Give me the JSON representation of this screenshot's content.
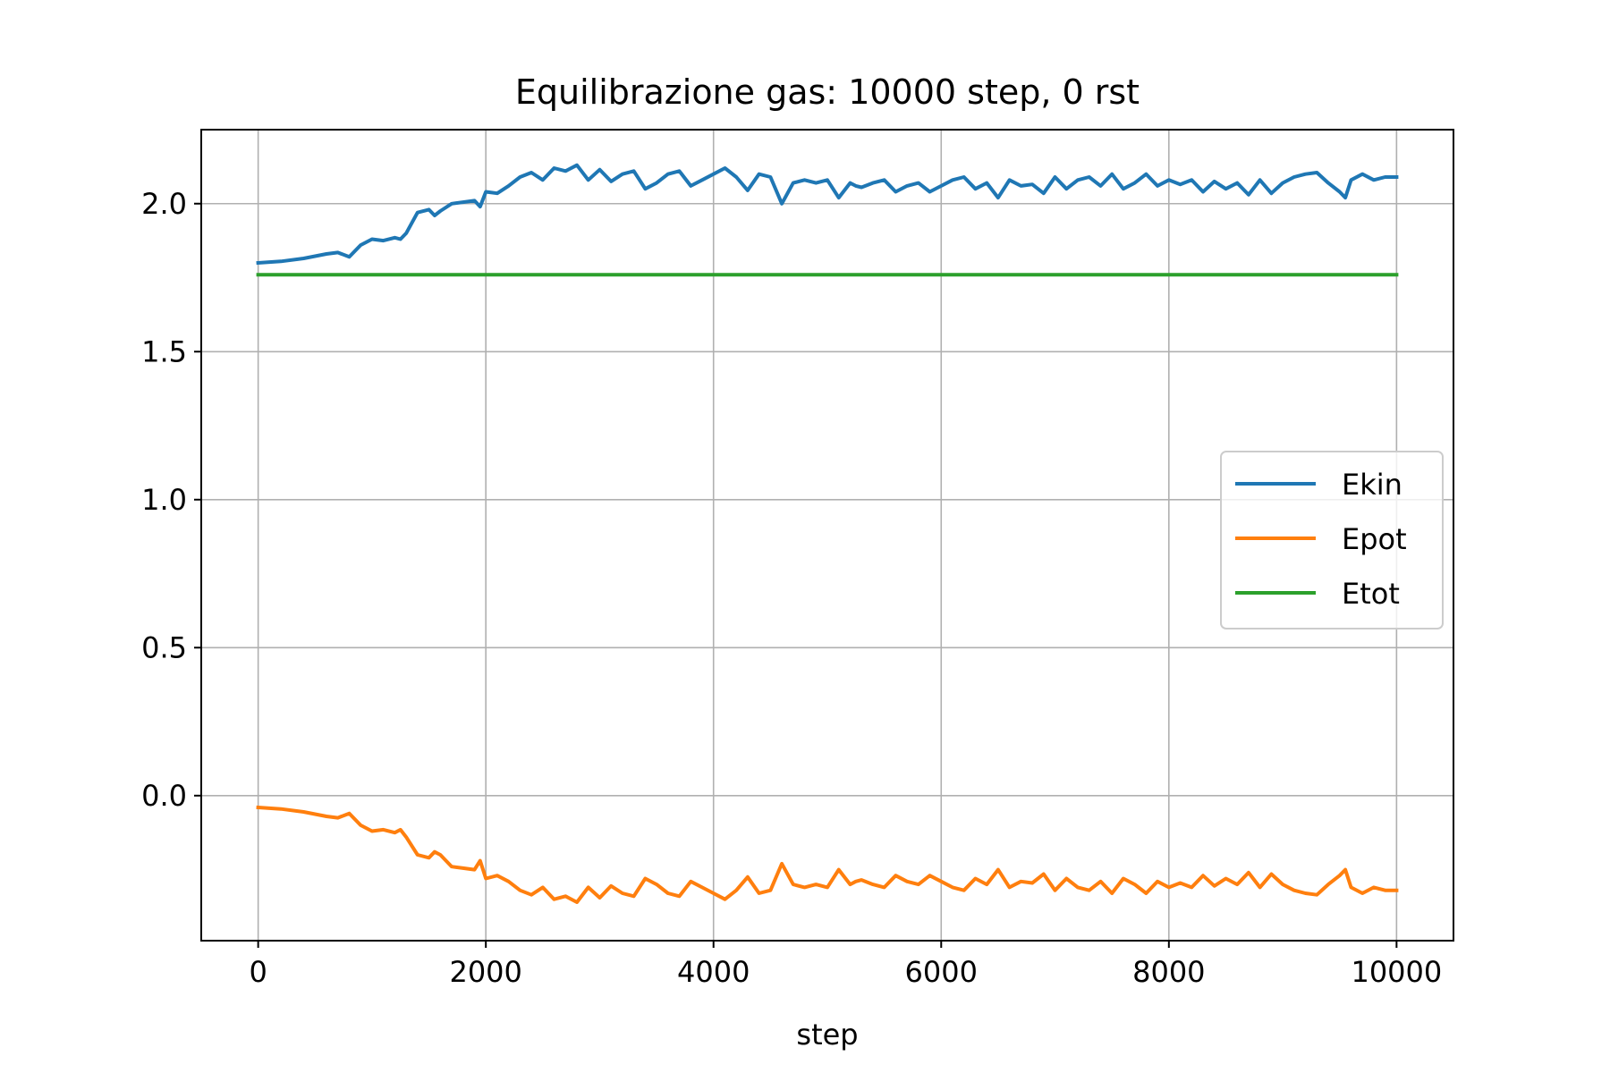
{
  "chart_data": {
    "type": "line",
    "title": "Equilibrazione gas: 10000 step, 0 rst",
    "xlabel": "step",
    "ylabel": "",
    "xlim": [
      -500,
      10500
    ],
    "ylim": [
      -0.49,
      2.25
    ],
    "xticks": [
      0,
      2000,
      4000,
      6000,
      8000,
      10000
    ],
    "xtick_labels": [
      "0",
      "2000",
      "4000",
      "6000",
      "8000",
      "10000"
    ],
    "yticks": [
      0.0,
      0.5,
      1.0,
      1.5,
      2.0
    ],
    "ytick_labels": [
      "0.0",
      "0.5",
      "1.0",
      "1.5",
      "2.0"
    ],
    "grid": true,
    "legend_position": "center-right",
    "series": [
      {
        "name": "Ekin",
        "color": "#1f77b4",
        "x": [
          0,
          200,
          400,
          600,
          700,
          800,
          900,
          1000,
          1100,
          1200,
          1250,
          1300,
          1400,
          1500,
          1550,
          1600,
          1700,
          1800,
          1900,
          1950,
          2000,
          2100,
          2200,
          2300,
          2400,
          2500,
          2600,
          2700,
          2800,
          2900,
          3000,
          3100,
          3200,
          3300,
          3400,
          3500,
          3600,
          3700,
          3800,
          3900,
          4000,
          4100,
          4200,
          4300,
          4400,
          4500,
          4600,
          4700,
          4750,
          4800,
          4900,
          5000,
          5100,
          5200,
          5250,
          5300,
          5400,
          5500,
          5600,
          5700,
          5800,
          5900,
          6000,
          6100,
          6200,
          6300,
          6400,
          6500,
          6600,
          6700,
          6800,
          6900,
          7000,
          7100,
          7200,
          7300,
          7400,
          7500,
          7600,
          7700,
          7800,
          7900,
          8000,
          8100,
          8200,
          8300,
          8400,
          8500,
          8600,
          8700,
          8800,
          8900,
          9000,
          9100,
          9200,
          9300,
          9400,
          9500,
          9550,
          9600,
          9700,
          9800,
          9900,
          10000
        ],
        "values": [
          1.8,
          1.805,
          1.815,
          1.83,
          1.835,
          1.82,
          1.86,
          1.88,
          1.875,
          1.885,
          1.88,
          1.9,
          1.97,
          1.98,
          1.96,
          1.975,
          2.0,
          2.005,
          2.01,
          1.99,
          2.04,
          2.035,
          2.06,
          2.09,
          2.105,
          2.08,
          2.12,
          2.11,
          2.13,
          2.08,
          2.115,
          2.075,
          2.1,
          2.11,
          2.05,
          2.07,
          2.1,
          2.11,
          2.06,
          2.08,
          2.1,
          2.12,
          2.09,
          2.045,
          2.1,
          2.09,
          2.0,
          2.07,
          2.075,
          2.08,
          2.07,
          2.08,
          2.02,
          2.07,
          2.06,
          2.055,
          2.07,
          2.08,
          2.04,
          2.06,
          2.07,
          2.04,
          2.06,
          2.08,
          2.09,
          2.05,
          2.07,
          2.02,
          2.08,
          2.06,
          2.065,
          2.035,
          2.09,
          2.05,
          2.08,
          2.09,
          2.06,
          2.1,
          2.05,
          2.07,
          2.1,
          2.06,
          2.08,
          2.065,
          2.08,
          2.04,
          2.075,
          2.05,
          2.07,
          2.03,
          2.08,
          2.035,
          2.07,
          2.09,
          2.1,
          2.105,
          2.07,
          2.04,
          2.02,
          2.08,
          2.1,
          2.08,
          2.09,
          2.09
        ]
      },
      {
        "name": "Epot",
        "color": "#ff7f0e",
        "x": [
          0,
          200,
          400,
          600,
          700,
          800,
          900,
          1000,
          1100,
          1200,
          1250,
          1300,
          1400,
          1500,
          1550,
          1600,
          1700,
          1800,
          1900,
          1950,
          2000,
          2100,
          2200,
          2300,
          2400,
          2500,
          2600,
          2700,
          2800,
          2900,
          3000,
          3100,
          3200,
          3300,
          3400,
          3500,
          3600,
          3700,
          3800,
          3900,
          4000,
          4100,
          4200,
          4300,
          4400,
          4500,
          4600,
          4700,
          4750,
          4800,
          4900,
          5000,
          5100,
          5200,
          5250,
          5300,
          5400,
          5500,
          5600,
          5700,
          5800,
          5900,
          6000,
          6100,
          6200,
          6300,
          6400,
          6500,
          6600,
          6700,
          6800,
          6900,
          7000,
          7100,
          7200,
          7300,
          7400,
          7500,
          7600,
          7700,
          7800,
          7900,
          8000,
          8100,
          8200,
          8300,
          8400,
          8500,
          8600,
          8700,
          8800,
          8900,
          9000,
          9100,
          9200,
          9300,
          9400,
          9500,
          9550,
          9600,
          9700,
          9800,
          9900,
          10000
        ],
        "values": [
          -0.04,
          -0.045,
          -0.055,
          -0.07,
          -0.075,
          -0.06,
          -0.1,
          -0.12,
          -0.115,
          -0.125,
          -0.115,
          -0.14,
          -0.2,
          -0.21,
          -0.19,
          -0.2,
          -0.24,
          -0.245,
          -0.25,
          -0.22,
          -0.28,
          -0.27,
          -0.29,
          -0.32,
          -0.335,
          -0.31,
          -0.35,
          -0.34,
          -0.36,
          -0.31,
          -0.345,
          -0.305,
          -0.33,
          -0.34,
          -0.28,
          -0.3,
          -0.33,
          -0.34,
          -0.29,
          -0.31,
          -0.33,
          -0.35,
          -0.32,
          -0.275,
          -0.33,
          -0.32,
          -0.23,
          -0.3,
          -0.305,
          -0.31,
          -0.3,
          -0.31,
          -0.25,
          -0.3,
          -0.29,
          -0.285,
          -0.3,
          -0.31,
          -0.27,
          -0.29,
          -0.3,
          -0.27,
          -0.29,
          -0.31,
          -0.32,
          -0.28,
          -0.3,
          -0.25,
          -0.31,
          -0.29,
          -0.295,
          -0.265,
          -0.32,
          -0.28,
          -0.31,
          -0.32,
          -0.29,
          -0.33,
          -0.28,
          -0.3,
          -0.33,
          -0.29,
          -0.31,
          -0.295,
          -0.31,
          -0.27,
          -0.305,
          -0.28,
          -0.3,
          -0.26,
          -0.31,
          -0.265,
          -0.3,
          -0.32,
          -0.33,
          -0.335,
          -0.3,
          -0.27,
          -0.25,
          -0.31,
          -0.33,
          -0.31,
          -0.32,
          -0.32
        ]
      },
      {
        "name": "Etot",
        "color": "#2ca02c",
        "x": [
          0,
          10000
        ],
        "values": [
          1.76,
          1.76
        ]
      }
    ]
  }
}
